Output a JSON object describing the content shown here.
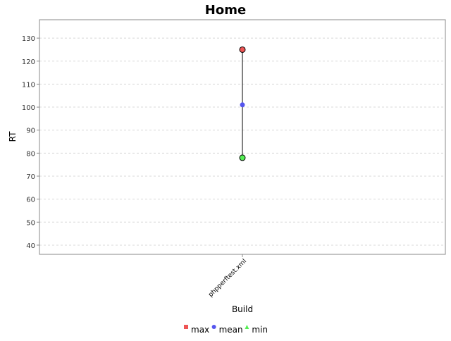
{
  "chart_data": {
    "type": "scatter",
    "title": "Home",
    "xlabel": "Build",
    "ylabel": "RT",
    "categories": [
      "phpperftest.xml"
    ],
    "ylim": [
      36,
      138
    ],
    "yticks": [
      40,
      50,
      60,
      70,
      80,
      90,
      100,
      110,
      120,
      130
    ],
    "grid": true,
    "legend_position": "bottom",
    "series": [
      {
        "name": "max",
        "values": [
          125
        ],
        "color": "#ee5555",
        "marker": "square"
      },
      {
        "name": "mean",
        "values": [
          101
        ],
        "color": "#5555ee",
        "marker": "circle"
      },
      {
        "name": "min",
        "values": [
          78
        ],
        "color": "#55ee55",
        "marker": "triangle"
      }
    ],
    "range_line": {
      "from": 78,
      "to": 125
    }
  }
}
